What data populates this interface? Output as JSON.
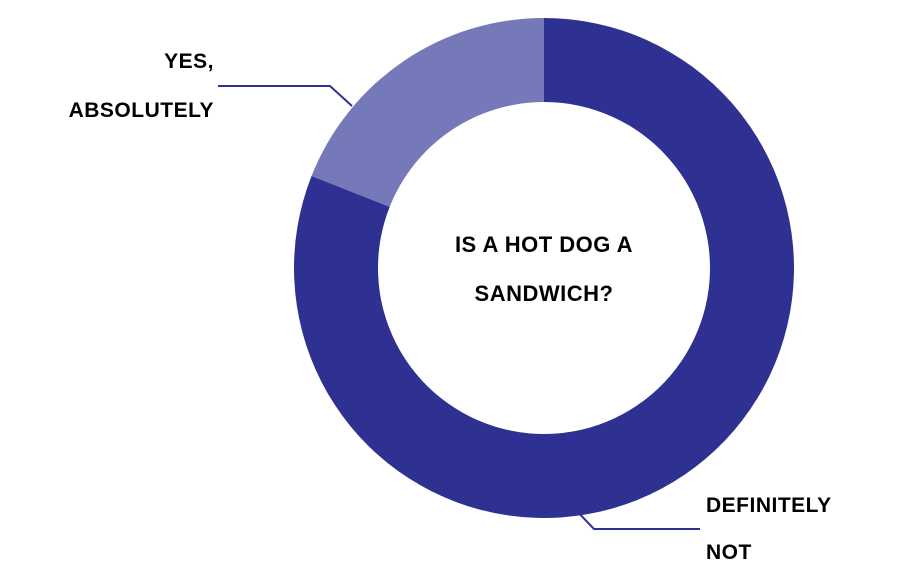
{
  "chart_data": {
    "type": "pie",
    "style": "donut",
    "title": "IS A HOT DOG A SANDWICH?",
    "title_lines": [
      "IS A HOT DOG A",
      "SANDWICH?"
    ],
    "slices": [
      {
        "label": "YES, ABSOLUTELY",
        "label_lines": [
          "YES,",
          "ABSOLUTELY"
        ],
        "value": 19,
        "color": "#7679b9"
      },
      {
        "label": "DEFINITELY NOT",
        "label_lines": [
          "DEFINITELY",
          "NOT"
        ],
        "value": 81,
        "color": "#2e3191"
      }
    ],
    "legend": "none",
    "text_color": "#2e3191",
    "leader_line_color": "#2e3191"
  }
}
